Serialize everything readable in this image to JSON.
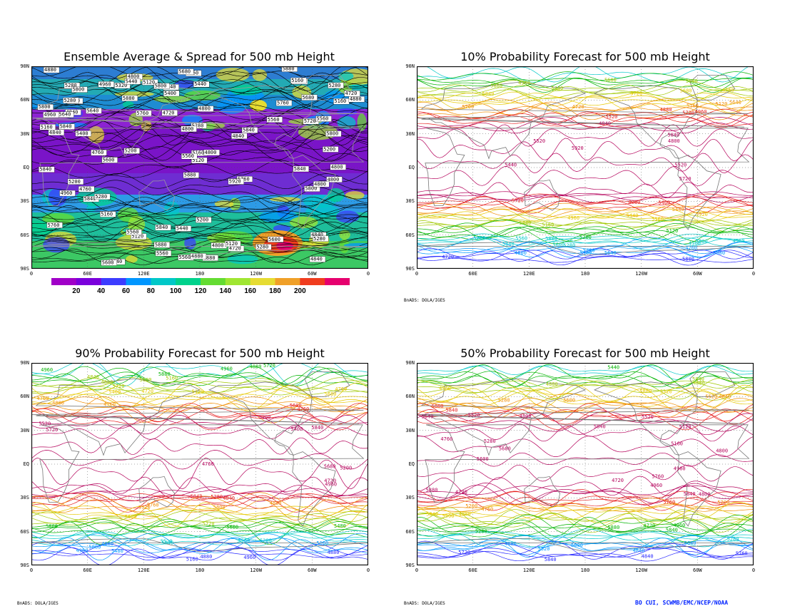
{
  "colors": {
    "frame": "#000000",
    "grid": "#555555",
    "coast": "#777777"
  },
  "panels": [
    {
      "id": "spread",
      "title": "Ensemble Average & Spread for 500 mb Height",
      "lat_labels": [
        "90N",
        "60N",
        "30N",
        "EQ",
        "30S",
        "60S",
        "90S"
      ],
      "lon_labels": [
        "0",
        "60E",
        "120E",
        "180",
        "120W",
        "60W",
        "0"
      ],
      "colorbar": {
        "labels": [
          "20",
          "40",
          "60",
          "80",
          "100",
          "120",
          "140",
          "160",
          "180",
          "200"
        ],
        "colors": [
          "#a000c8",
          "#7a00dc",
          "#3c3cff",
          "#0096ff",
          "#00c8c8",
          "#00d28c",
          "#64dc32",
          "#a0e632",
          "#e6dc32",
          "#f0a028",
          "#f03c1e",
          "#e6006e"
        ]
      },
      "contour_labels": [
        "5280",
        "5320",
        "5400",
        "5440",
        "5480",
        "5520",
        "5560",
        "5600",
        "5640",
        "5680",
        "5720",
        "5760",
        "5800",
        "5840",
        "5880",
        "5920",
        "5200",
        "5160",
        "5120",
        "4960",
        "4880",
        "4840",
        "4800",
        "4720",
        "4760"
      ]
    },
    {
      "id": "p10",
      "title": "10% Probability Forecast for 500 mb Height",
      "lat_labels": [
        "90N",
        "60N",
        "30N",
        "EQ",
        "30S",
        "60S",
        "90S"
      ],
      "lon_labels": [
        "0",
        "60E",
        "120E",
        "180",
        "120W",
        "60W",
        "0"
      ],
      "footer": "BnADS: DOLA/IGES"
    },
    {
      "id": "p90",
      "title": "90% Probability Forecast for 500 mb Height",
      "lat_labels": [
        "90N",
        "60N",
        "30N",
        "EQ",
        "30S",
        "60S",
        "90S"
      ],
      "lon_labels": [
        "0",
        "60E",
        "120E",
        "180",
        "120W",
        "60W",
        "0"
      ],
      "footer": "BnADS: DOLA/IGES"
    },
    {
      "id": "p50",
      "title": "50% Probability Forecast for 500 mb Height",
      "lat_labels": [
        "90N",
        "60N",
        "30N",
        "EQ",
        "30S",
        "60S",
        "90S"
      ],
      "lon_labels": [
        "0",
        "60E",
        "120E",
        "180",
        "120W",
        "60W",
        "0"
      ],
      "footer": "BnADS: DOLA/IGES",
      "credit": "BO CUI, SCWMB/EMC/NCEP/NOAA"
    }
  ]
}
